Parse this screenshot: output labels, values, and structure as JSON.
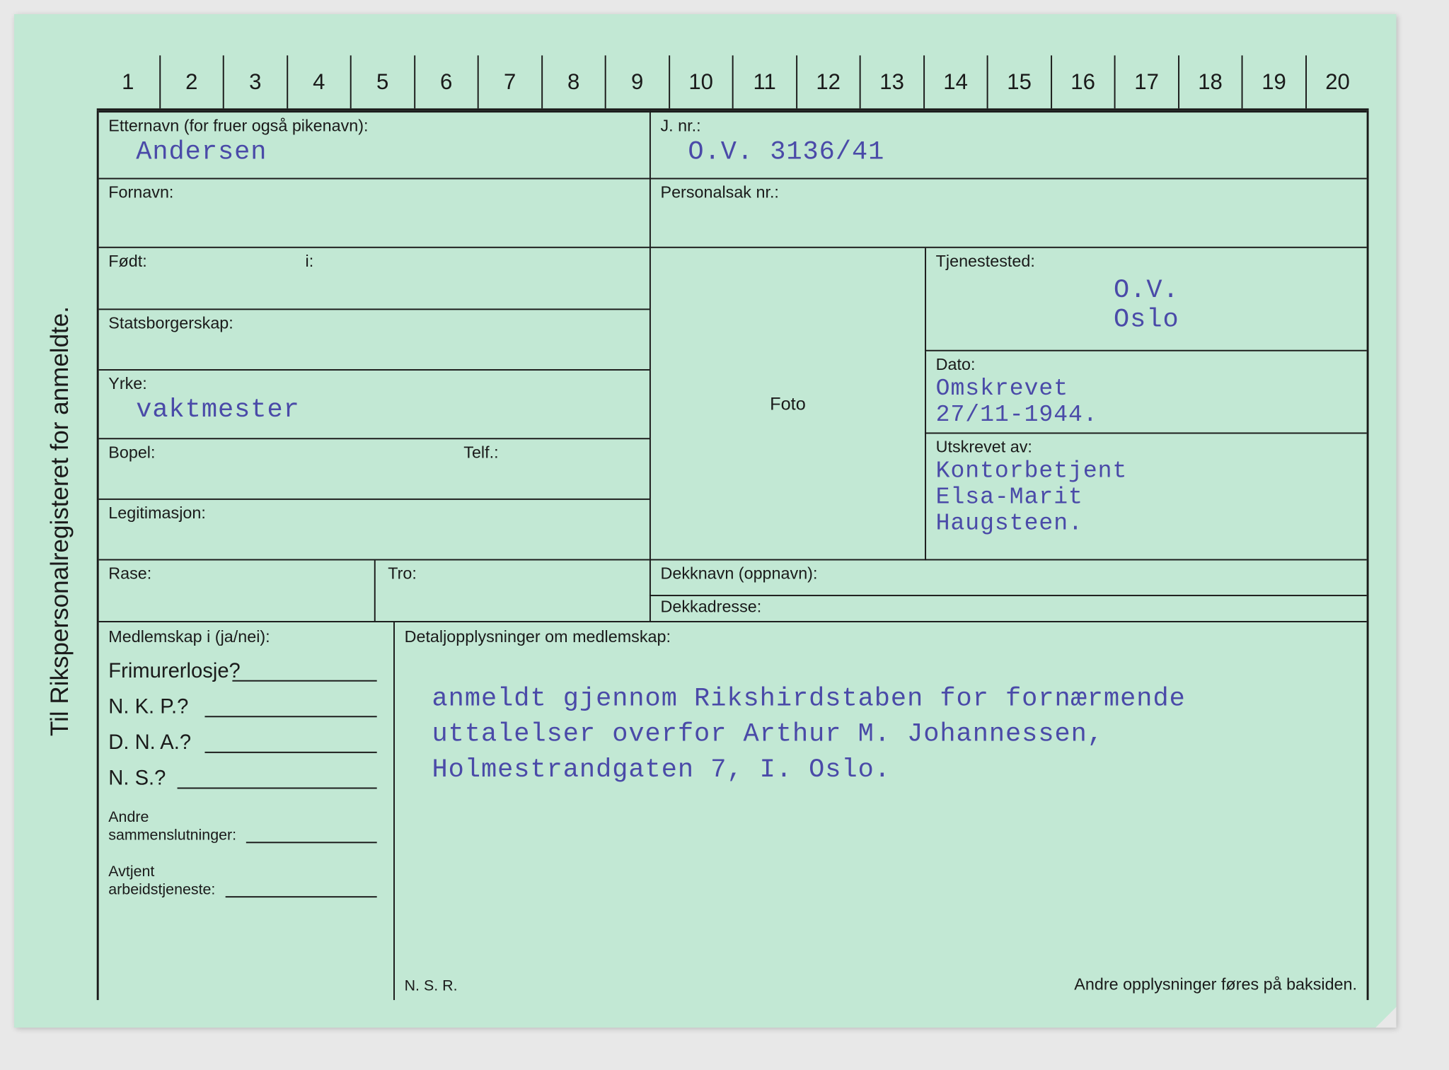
{
  "vertical_title": "Til Rikspersonalregisteret for anmeldte.",
  "ruler": [
    "1",
    "2",
    "3",
    "4",
    "5",
    "6",
    "7",
    "8",
    "9",
    "10",
    "11",
    "12",
    "13",
    "14",
    "15",
    "16",
    "17",
    "18",
    "19",
    "20"
  ],
  "labels": {
    "etternavn": "Etternavn (for fruer også pikenavn):",
    "jnr": "J. nr.:",
    "fornavn": "Fornavn:",
    "personalsak": "Personalsak nr.:",
    "fodt": "Født:",
    "i": "i:",
    "statsborgerskap": "Statsborgerskap:",
    "yrke": "Yrke:",
    "bopel": "Bopel:",
    "telf": "Telf.:",
    "legitimasjon": "Legitimasjon:",
    "rase": "Rase:",
    "tro": "Tro:",
    "foto": "Foto",
    "tjenestested": "Tjenestested:",
    "dato": "Dato:",
    "utskrevet_av": "Utskrevet av:",
    "dekknavn": "Dekknavn (oppnavn):",
    "dekkadresse": "Dekkadresse:",
    "medlemskap": "Medlemskap i (ja/nei):",
    "frimurer": "Frimurerlosje?",
    "nkp": "N. K. P.?",
    "dna": "D. N. A.?",
    "ns": "N. S.?",
    "andre_samm": "Andre\nsammenslutninger:",
    "avtjent": "Avtjent\narbeidstjeneste:",
    "detalj": "Detaljopplysninger om medlemskap:",
    "nsr": "N. S. R.",
    "andre_oppl": "Andre opplysninger føres på baksiden."
  },
  "values": {
    "etternavn": "Andersen",
    "jnr": "O.V. 3136/41",
    "yrke": "vaktmester",
    "tjenestested": "O.V.\nOslo",
    "dato": "Omskrevet\n27/11-1944.",
    "utskrevet_av": "Kontorbetjent\nElsa-Marit\nHaugsteen.",
    "detalj_text": "anmeldt gjennom Rikshirdstaben for fornærmende uttalelser overfor Arthur M. Johannessen, Holmestrandgaten 7, I. Oslo."
  },
  "colors": {
    "card_bg": "#c2e8d4",
    "text": "#1a1a1a",
    "typed": "#4a4aa8"
  }
}
